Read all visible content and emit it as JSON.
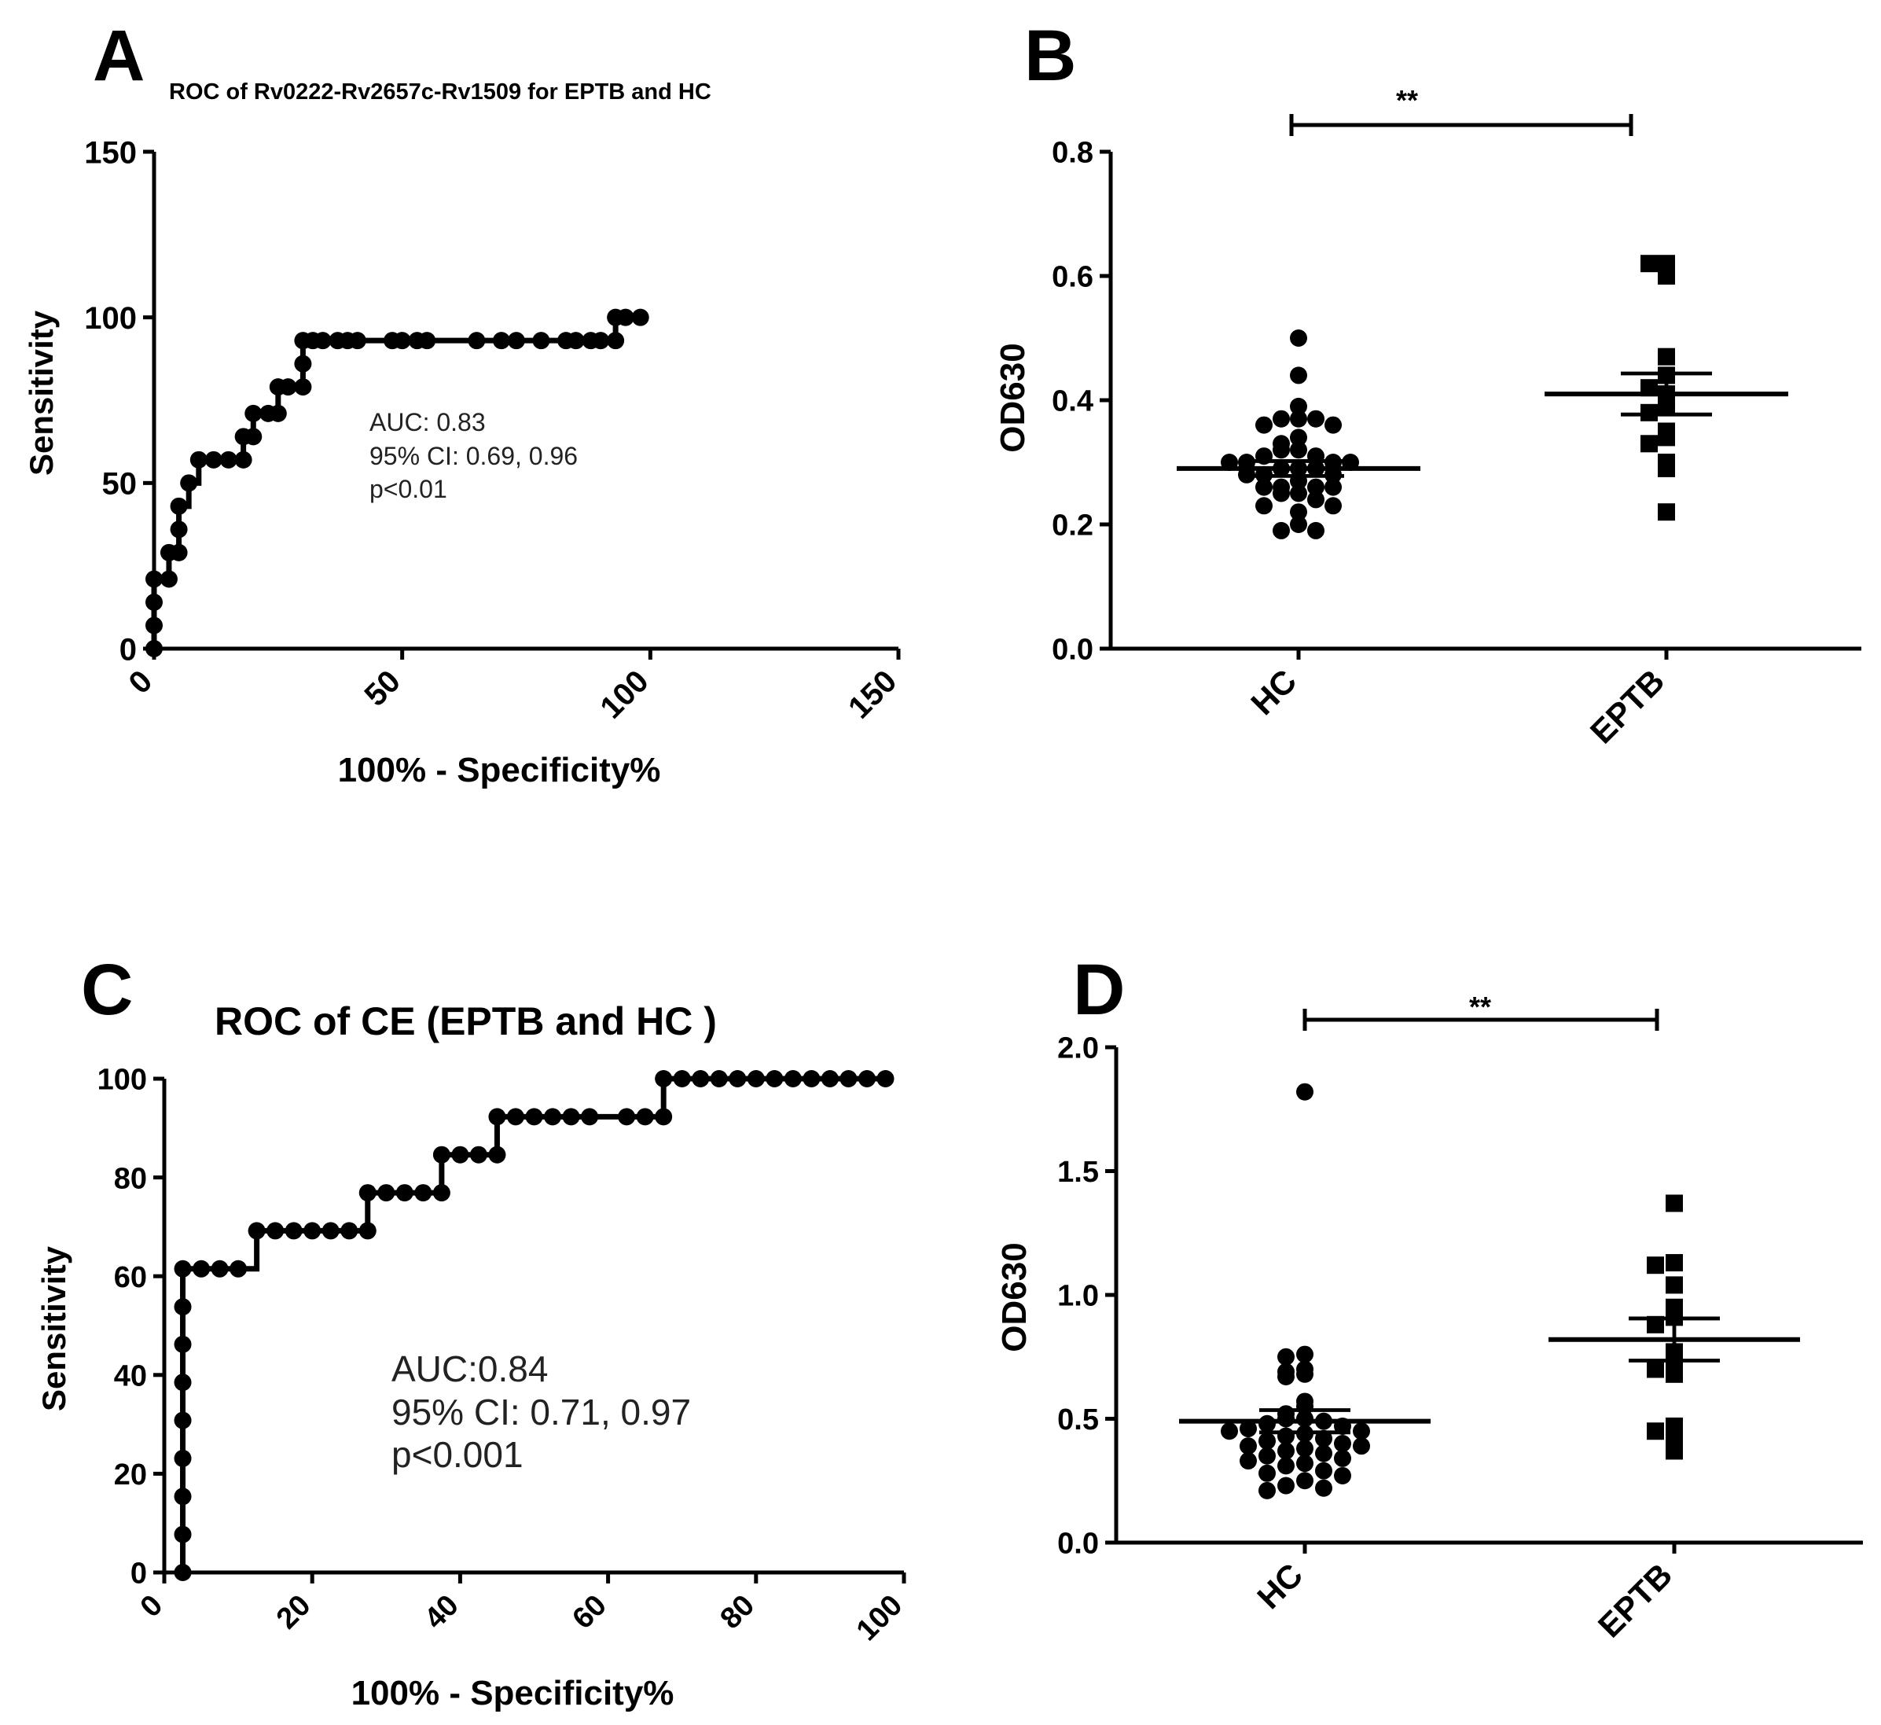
{
  "figure": {
    "colors": {
      "ink": "#000000",
      "annotation": "#222222",
      "background": "#ffffff"
    }
  },
  "chart_data": [
    {
      "id": "A",
      "type": "line",
      "panel_letter": "A",
      "title": "ROC of Rv0222-Rv2657c-Rv1509 for EPTB and HC",
      "xlabel": "100% - Specificity%",
      "ylabel": "Sensitivity",
      "xlim": [
        0,
        150
      ],
      "ylim": [
        0,
        150
      ],
      "xticks": [
        0,
        50,
        100,
        150
      ],
      "yticks": [
        0,
        50,
        100,
        150
      ],
      "xtick_labels": [
        "0",
        "50",
        "100",
        "150"
      ],
      "ytick_labels": [
        "0",
        "50",
        "100",
        "150"
      ],
      "annotations": [
        "AUC: 0.83",
        "95% CI: 0.69, 0.96",
        "p<0.01"
      ],
      "series": [
        {
          "name": "ROC",
          "x": [
            0,
            0,
            0,
            0,
            3,
            3,
            5,
            5,
            5,
            7,
            9,
            12,
            15,
            18,
            18,
            20,
            20,
            23,
            25,
            25,
            27,
            30,
            30,
            30,
            32,
            34,
            37,
            39,
            41,
            48,
            50,
            53,
            55,
            65,
            70,
            73,
            78,
            83,
            85,
            88,
            90,
            93,
            93,
            95,
            98
          ],
          "y": [
            0,
            7,
            14,
            21,
            21,
            29,
            29,
            36,
            43,
            50,
            57,
            57,
            57,
            57,
            64,
            64,
            71,
            71,
            71,
            79,
            79,
            79,
            86,
            93,
            93,
            93,
            93,
            93,
            93,
            93,
            93,
            93,
            93,
            93,
            93,
            93,
            93,
            93,
            93,
            93,
            93,
            93,
            100,
            100,
            100
          ]
        }
      ]
    },
    {
      "id": "B",
      "type": "scatter",
      "panel_letter": "B",
      "ylabel": "OD630",
      "xlabel": "",
      "ylim": [
        0,
        0.8
      ],
      "yticks": [
        0.0,
        0.2,
        0.4,
        0.6,
        0.8
      ],
      "ytick_labels": [
        "0.0",
        "0.2",
        "0.4",
        "0.6",
        "0.8"
      ],
      "categories": [
        "HC",
        "EPTB"
      ],
      "significance": "**",
      "series": [
        {
          "name": "HC",
          "marker": "circle",
          "values": [
            0.5,
            0.44,
            0.39,
            0.37,
            0.37,
            0.37,
            0.36,
            0.36,
            0.34,
            0.33,
            0.32,
            0.32,
            0.31,
            0.31,
            0.3,
            0.3,
            0.3,
            0.3,
            0.29,
            0.29,
            0.29,
            0.28,
            0.28,
            0.28,
            0.27,
            0.26,
            0.26,
            0.26,
            0.26,
            0.25,
            0.25,
            0.24,
            0.23,
            0.23,
            0.22,
            0.2,
            0.19,
            0.19
          ],
          "mean": 0.29,
          "sem": 0.012
        },
        {
          "name": "EPTB",
          "marker": "square",
          "values": [
            0.62,
            0.62,
            0.6,
            0.47,
            0.44,
            0.42,
            0.41,
            0.39,
            0.38,
            0.35,
            0.34,
            0.33,
            0.3,
            0.29,
            0.22
          ],
          "mean": 0.41,
          "sem": 0.033
        }
      ]
    },
    {
      "id": "C",
      "type": "line",
      "panel_letter": "C",
      "title": "ROC of CE (EPTB and HC )",
      "xlabel": "100% - Specificity%",
      "ylabel": "Sensitivity",
      "xlim": [
        0,
        100
      ],
      "ylim": [
        0,
        100
      ],
      "xticks": [
        0,
        20,
        40,
        60,
        80,
        100
      ],
      "yticks": [
        0,
        20,
        40,
        60,
        80,
        100
      ],
      "xtick_labels": [
        "0",
        "20",
        "40",
        "60",
        "80",
        "100"
      ],
      "ytick_labels": [
        "0",
        "20",
        "40",
        "60",
        "80",
        "100"
      ],
      "annotations": [
        "AUC:0.84",
        "95% CI: 0.71, 0.97",
        "p<0.001"
      ],
      "series": [
        {
          "name": "ROC",
          "x": [
            2.5,
            2.5,
            2.5,
            2.5,
            2.5,
            2.5,
            2.5,
            2.5,
            2.5,
            5,
            7.5,
            10,
            12.5,
            15,
            17.5,
            20,
            22.5,
            25,
            27.5,
            27.5,
            30,
            32.5,
            35,
            37.5,
            37.5,
            40,
            42.5,
            45,
            45,
            47.5,
            50,
            52.5,
            55,
            57.5,
            62.5,
            65,
            67.5,
            67.5,
            70,
            72.5,
            75,
            77.5,
            80,
            82.5,
            85,
            87.5,
            90,
            92.5,
            95,
            97.5
          ],
          "y": [
            0,
            7.7,
            15.4,
            23.1,
            30.8,
            38.5,
            46.2,
            53.8,
            61.5,
            61.5,
            61.5,
            61.5,
            69.2,
            69.2,
            69.2,
            69.2,
            69.2,
            69.2,
            69.2,
            76.9,
            76.9,
            76.9,
            76.9,
            76.9,
            84.6,
            84.6,
            84.6,
            84.6,
            92.3,
            92.3,
            92.3,
            92.3,
            92.3,
            92.3,
            92.3,
            92.3,
            92.3,
            100,
            100,
            100,
            100,
            100,
            100,
            100,
            100,
            100,
            100,
            100,
            100,
            100
          ]
        }
      ]
    },
    {
      "id": "D",
      "type": "scatter",
      "panel_letter": "D",
      "ylabel": "OD630",
      "xlabel": "",
      "ylim": [
        0,
        2.0
      ],
      "yticks": [
        0.0,
        0.5,
        1.0,
        1.5,
        2.0
      ],
      "ytick_labels": [
        "0.0",
        "0.5",
        "1.0",
        "1.5",
        "2.0"
      ],
      "categories": [
        "HC",
        "EPTB"
      ],
      "significance": "**",
      "series": [
        {
          "name": "HC",
          "marker": "circle",
          "values": [
            1.82,
            0.76,
            0.75,
            0.7,
            0.69,
            0.68,
            0.67,
            0.57,
            0.55,
            0.52,
            0.5,
            0.5,
            0.49,
            0.48,
            0.47,
            0.46,
            0.45,
            0.45,
            0.44,
            0.43,
            0.42,
            0.41,
            0.4,
            0.39,
            0.39,
            0.38,
            0.37,
            0.36,
            0.35,
            0.34,
            0.33,
            0.32,
            0.31,
            0.29,
            0.28,
            0.27,
            0.25,
            0.23,
            0.22,
            0.21
          ],
          "mean": 0.49,
          "sem": 0.045
        },
        {
          "name": "EPTB",
          "marker": "square",
          "values": [
            1.37,
            1.13,
            1.12,
            1.04,
            0.95,
            0.91,
            0.88,
            0.77,
            0.72,
            0.7,
            0.68,
            0.47,
            0.45,
            0.43,
            0.37
          ],
          "mean": 0.82,
          "sem": 0.085
        }
      ]
    }
  ]
}
